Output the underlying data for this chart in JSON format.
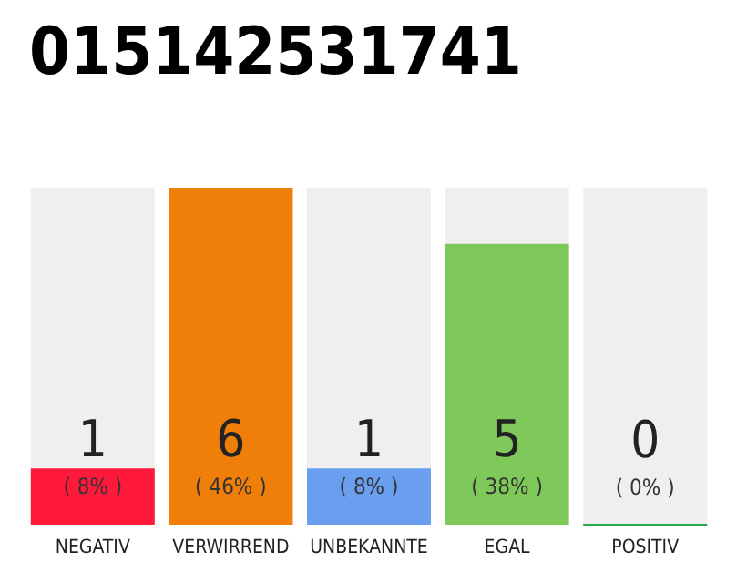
{
  "chart_data": {
    "type": "bar",
    "title": "015142531741",
    "categories": [
      "NEGATIV",
      "VERWIRREND",
      "UNBEKANNTE",
      "EGAL",
      "POSITIV"
    ],
    "values": [
      1,
      6,
      1,
      5,
      0
    ],
    "colors": [
      "#ff1a3c",
      "#f07f0a",
      "#6a9ff0",
      "#7ec95a",
      "#22a84a"
    ],
    "value_labels": [
      "1\n( 8% )",
      "6\n( 46% )",
      "1\n( 8% )",
      "5\n( 38% )",
      "0\n( 0% )"
    ],
    "ylim": [
      0,
      6
    ]
  }
}
